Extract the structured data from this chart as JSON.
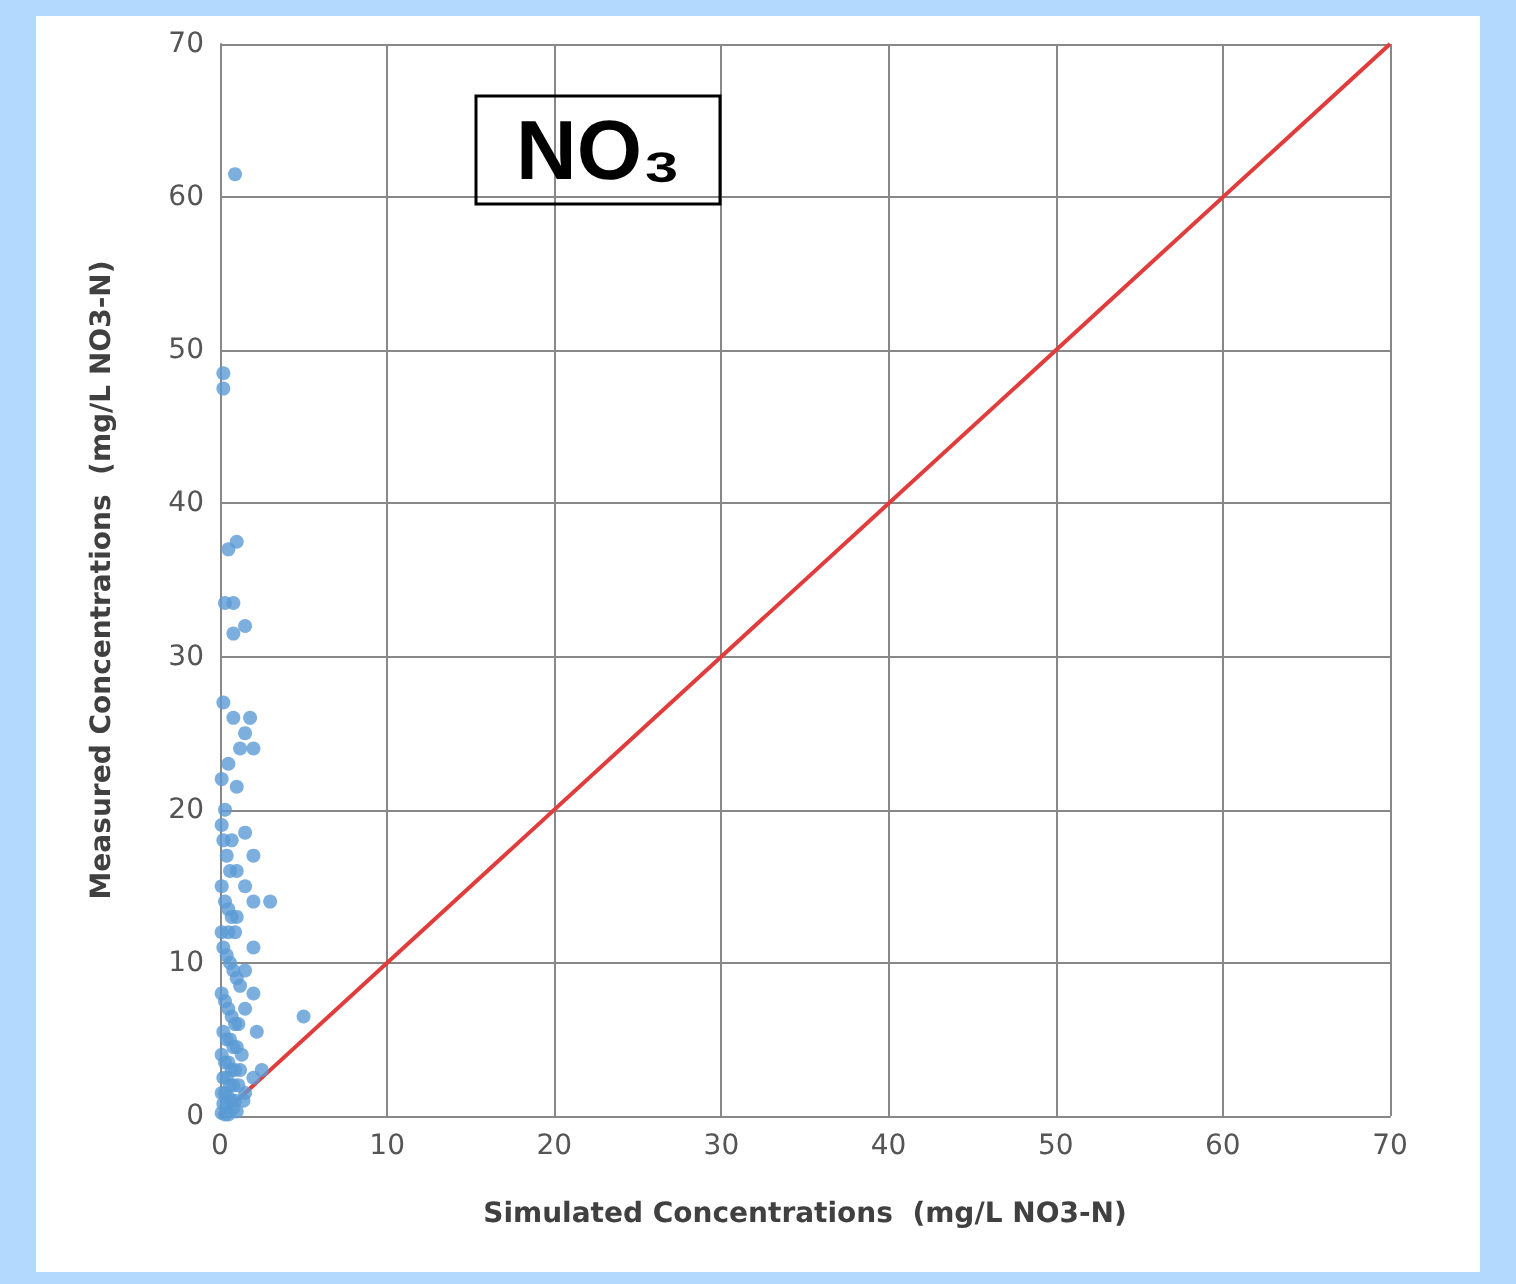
{
  "chart_data": {
    "type": "scatter",
    "title": "NO₃",
    "xlabel": "Simulated Concentrations  (mg/L NO3-N)",
    "ylabel": "Measured Concentrations  (mg/L NO3-N)",
    "xlim": [
      0,
      70
    ],
    "ylim": [
      0,
      70
    ],
    "xticks": [
      0,
      10,
      20,
      30,
      40,
      50,
      60,
      70
    ],
    "yticks": [
      0,
      10,
      20,
      30,
      40,
      50,
      60,
      70
    ],
    "grid": true,
    "marker": "circle",
    "series": [
      {
        "color": "#5b9bd5",
        "x": [
          0.9,
          0.2,
          0.2,
          1.0,
          0.5,
          0.3,
          0.8,
          1.5,
          0.8,
          0.2,
          0.8,
          1.8,
          1.5,
          2.0,
          1.2,
          0.5,
          0.1,
          1.0,
          0.3,
          1.5,
          0.7,
          2.0,
          1.0,
          1.5,
          3.0,
          2.0,
          1.0,
          0.5,
          2.0,
          5.0,
          1.5,
          2.0,
          1.5,
          2.2,
          2.5,
          2.0,
          1.5,
          0.1,
          0.2,
          0.4,
          0.6,
          0.1,
          0.3,
          0.5,
          0.7,
          0.9,
          0.1,
          0.2,
          0.4,
          0.6,
          0.8,
          1.0,
          1.2,
          0.1,
          0.3,
          0.5,
          0.7,
          0.9,
          1.1,
          0.2,
          0.4,
          0.6,
          0.8,
          1.0,
          1.3,
          0.1,
          0.3,
          0.5,
          0.7,
          0.9,
          1.2,
          0.2,
          0.4,
          0.6,
          0.8,
          1.1,
          0.1,
          0.3,
          0.5,
          0.7,
          0.9,
          1.4,
          0.2,
          0.4,
          0.8,
          1.0,
          0.1,
          0.3,
          0.5
        ],
        "values": [
          61.5,
          48.5,
          47.5,
          37.5,
          37,
          33.5,
          33.5,
          32,
          31.5,
          27,
          26,
          26,
          25,
          24,
          24,
          23,
          22,
          21.5,
          20,
          18.5,
          18,
          17,
          16,
          15,
          14,
          14,
          13,
          12,
          11,
          6.5,
          9.5,
          8,
          7,
          5.5,
          3,
          2.5,
          1.5,
          19,
          18,
          17,
          16,
          15,
          14,
          13.5,
          13,
          12,
          12,
          11,
          10.5,
          10,
          9.5,
          9,
          8.5,
          8,
          7.5,
          7,
          6.5,
          6,
          6,
          5.5,
          5,
          5,
          4.5,
          4.5,
          4,
          4,
          3.5,
          3.5,
          3,
          3,
          3,
          2.5,
          2.5,
          2,
          2,
          2,
          1.5,
          1.5,
          1.2,
          1,
          1,
          1,
          0.8,
          0.6,
          0.5,
          0.3,
          0.2,
          0.1,
          0.1
        ]
      },
      {
        "type": "line",
        "marker": "none",
        "color": "#e03c3c",
        "x": [
          0,
          70
        ],
        "values": [
          0,
          70
        ]
      }
    ]
  }
}
